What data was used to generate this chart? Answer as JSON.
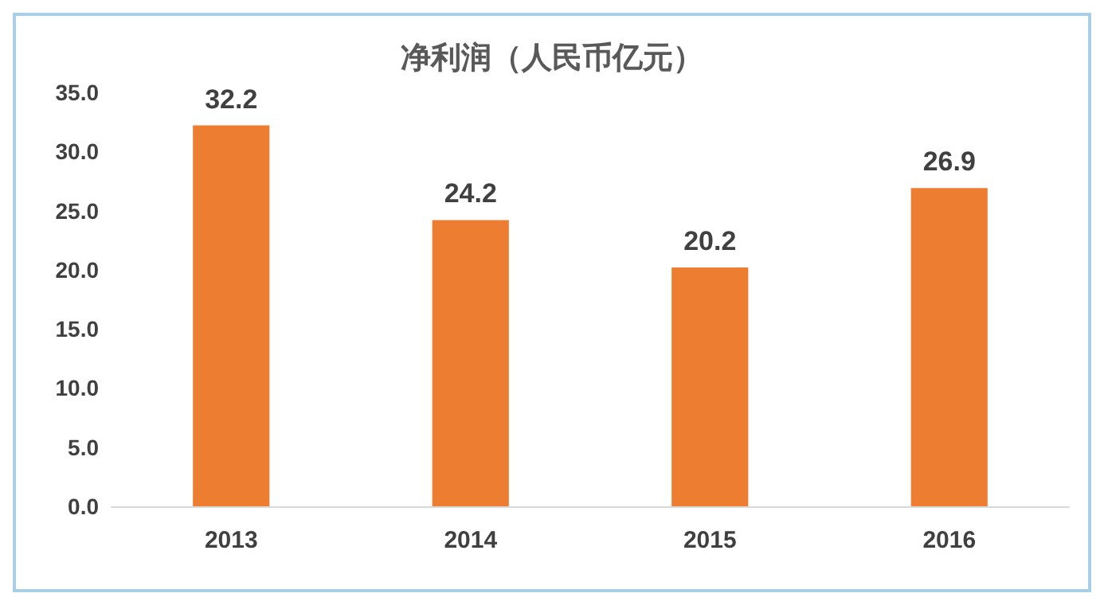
{
  "chart_data": {
    "type": "bar",
    "title": "净利润（人民币亿元）",
    "categories": [
      "2013",
      "2014",
      "2015",
      "2016"
    ],
    "values": [
      32.2,
      24.2,
      20.2,
      26.9
    ],
    "color": "#ed7d31",
    "ylim": [
      0,
      35
    ],
    "yticks": [
      {
        "value": 0,
        "label": "0.0"
      },
      {
        "value": 5,
        "label": "5.0"
      },
      {
        "value": 10,
        "label": "10.0"
      },
      {
        "value": 15,
        "label": "15.0"
      },
      {
        "value": 20,
        "label": "20.0"
      },
      {
        "value": 25,
        "label": "25.0"
      },
      {
        "value": 30,
        "label": "30.0"
      },
      {
        "value": 35,
        "label": "35.0"
      }
    ],
    "data_labels": true
  }
}
